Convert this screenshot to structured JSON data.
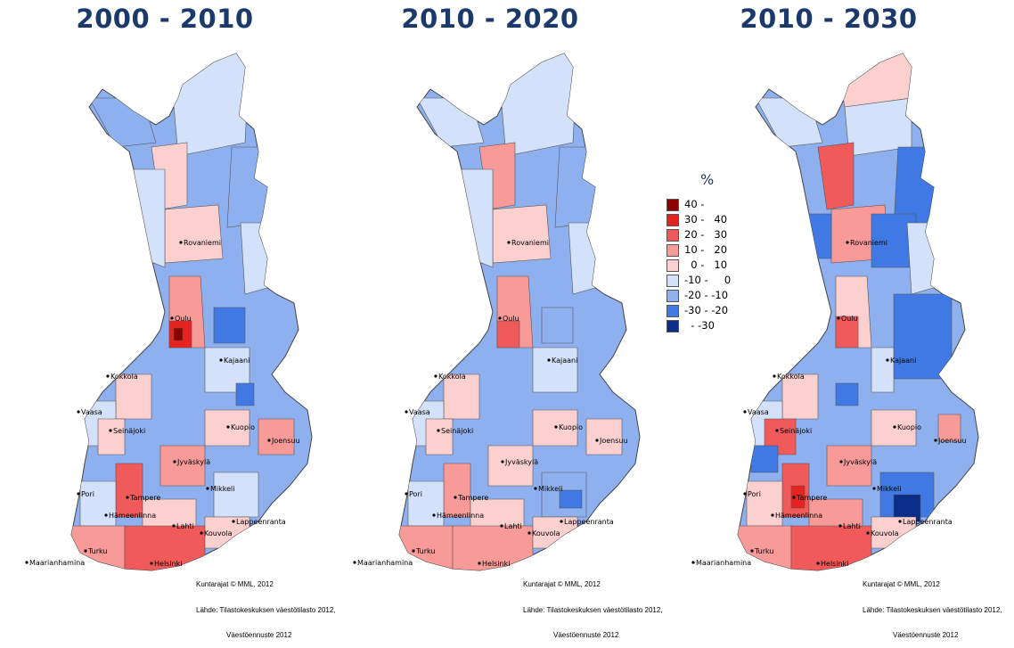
{
  "panels": [
    {
      "title": "2000 - 2010",
      "credit_line1": "Kuntarajat © MML, 2012",
      "credit_line2": "Lähde: Tilastokeskuksen väestötilasto 2012,",
      "credit_line3": "Väestöennuste 2012"
    },
    {
      "title": "2010 - 2020",
      "credit_line1": "Kuntarajat © MML, 2012",
      "credit_line2": "Lähde: Tilastokeskuksen väestötilasto 2012,",
      "credit_line3": "Väestöennuste 2012"
    },
    {
      "title": "2010 - 2030",
      "credit_line1": "Kuntarajat © MML, 2012",
      "credit_line2": "Lähde: Tilastokeskuksen väestötilasto 2012,",
      "credit_line3": "Väestöennuste 2012"
    }
  ],
  "cities": [
    "Rovaniemi",
    "Oulu",
    "Kajaani",
    "Kokkola",
    "Vaasa",
    "Seinäjoki",
    "Kuopio",
    "Joensuu",
    "Jyväskylä",
    "Mikkeli",
    "Pori",
    "Tampere",
    "Hämeenlinna",
    "Lahti",
    "Lappeenranta",
    "Kouvola",
    "Turku",
    "Helsinki",
    "Maarianhamina"
  ],
  "legend": {
    "title": "%",
    "items": [
      {
        "label": "40 -",
        "color": "#8b0000"
      },
      {
        "label": "30 -   40",
        "color": "#e8231f"
      },
      {
        "label": "20 -   30",
        "color": "#f15a5a"
      },
      {
        "label": "10 -   20",
        "color": "#f79a98"
      },
      {
        "label": "  0 -   10",
        "color": "#fbd0cf"
      },
      {
        "label": "-10 -     0",
        "color": "#d3e1fb"
      },
      {
        "label": "-20 - -10",
        "color": "#8fb0ef"
      },
      {
        "label": "-30 - -20",
        "color": "#4079e3"
      },
      {
        "label": "  - -30",
        "color": "#0a2d8a"
      }
    ]
  },
  "colors": {
    "title": "#1b3a6b",
    "border": "#555555"
  }
}
